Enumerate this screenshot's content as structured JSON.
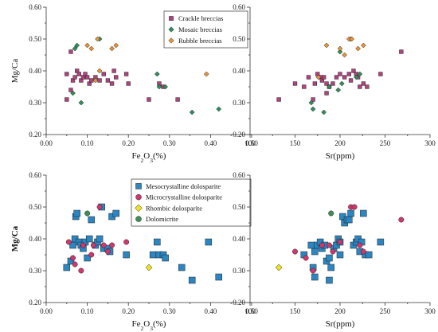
{
  "chart_data": [
    {
      "id": "top-left",
      "type": "scatter",
      "xlabel": "Fe2O3(%)",
      "ylabel": "Mg/Ca",
      "xlim": [
        0,
        0.5
      ],
      "ylim": [
        0.2,
        0.6
      ],
      "xticks": [
        "0.00",
        "0.10",
        "0.20",
        "0.30",
        "0.40",
        "0.50"
      ],
      "yticks": [
        "0.20",
        "0.30",
        "0.40",
        "0.50",
        "0.60"
      ],
      "legend": "top-right",
      "series": [
        {
          "name": "Crackle breccias",
          "marker": "square",
          "color": "#b0427e",
          "points": [
            [
              0.05,
              0.39
            ],
            [
              0.06,
              0.46
            ],
            [
              0.065,
              0.37
            ],
            [
              0.07,
              0.38
            ],
            [
              0.075,
              0.4
            ],
            [
              0.08,
              0.39
            ],
            [
              0.085,
              0.37
            ],
            [
              0.09,
              0.38
            ],
            [
              0.095,
              0.39
            ],
            [
              0.1,
              0.38
            ],
            [
              0.105,
              0.36
            ],
            [
              0.11,
              0.37
            ],
            [
              0.12,
              0.38
            ],
            [
              0.13,
              0.37
            ],
            [
              0.14,
              0.39
            ],
            [
              0.15,
              0.37
            ],
            [
              0.16,
              0.36
            ],
            [
              0.165,
              0.4
            ],
            [
              0.17,
              0.38
            ],
            [
              0.195,
              0.39
            ],
            [
              0.2,
              0.36
            ],
            [
              0.25,
              0.31
            ],
            [
              0.275,
              0.36
            ],
            [
              0.285,
              0.35
            ],
            [
              0.32,
              0.31
            ],
            [
              0.05,
              0.31
            ],
            [
              0.06,
              0.34
            ]
          ]
        },
        {
          "name": "Mosaic breccias",
          "marker": "diamond",
          "color": "#2f8f5a",
          "points": [
            [
              0.07,
              0.47
            ],
            [
              0.075,
              0.48
            ],
            [
              0.085,
              0.3
            ],
            [
              0.065,
              0.33
            ],
            [
              0.13,
              0.5
            ],
            [
              0.27,
              0.39
            ],
            [
              0.275,
              0.35
            ],
            [
              0.29,
              0.35
            ],
            [
              0.355,
              0.27
            ],
            [
              0.42,
              0.28
            ]
          ]
        },
        {
          "name": "Rubble breccias",
          "marker": "diamond",
          "color": "#e8953a",
          "points": [
            [
              0.1,
              0.48
            ],
            [
              0.11,
              0.47
            ],
            [
              0.125,
              0.5
            ],
            [
              0.13,
              0.4
            ],
            [
              0.16,
              0.47
            ],
            [
              0.17,
              0.48
            ],
            [
              0.12,
              0.37
            ],
            [
              0.39,
              0.39
            ]
          ]
        }
      ]
    },
    {
      "id": "top-right",
      "type": "scatter",
      "xlabel": "Sr(ppm)",
      "ylabel": "",
      "xlim": [
        100,
        300
      ],
      "ylim": [
        0.2,
        0.6
      ],
      "xticks": [
        "100",
        "150",
        "200",
        "250",
        "300"
      ],
      "yticks": [
        "0.20",
        "0.30",
        "0.40",
        "0.50",
        "0.60"
      ],
      "series": [
        {
          "name": "Crackle breccias",
          "marker": "square",
          "color": "#b0427e",
          "points": [
            [
              132,
              0.31
            ],
            [
              150,
              0.36
            ],
            [
              160,
              0.35
            ],
            [
              165,
              0.38
            ],
            [
              172,
              0.36
            ],
            [
              175,
              0.39
            ],
            [
              178,
              0.38
            ],
            [
              180,
              0.37
            ],
            [
              182,
              0.38
            ],
            [
              185,
              0.36
            ],
            [
              188,
              0.35
            ],
            [
              192,
              0.36
            ],
            [
              196,
              0.38
            ],
            [
              200,
              0.39
            ],
            [
              205,
              0.38
            ],
            [
              210,
              0.39
            ],
            [
              212,
              0.37
            ],
            [
              215,
              0.4
            ],
            [
              218,
              0.39
            ],
            [
              220,
              0.38
            ],
            [
              222,
              0.35
            ],
            [
              226,
              0.36
            ],
            [
              230,
              0.35
            ],
            [
              245,
              0.39
            ],
            [
              268,
              0.46
            ],
            [
              170,
              0.31
            ],
            [
              185,
              0.33
            ]
          ]
        },
        {
          "name": "Mosaic breccias",
          "marker": "diamond",
          "color": "#2f8f5a",
          "points": [
            [
              168,
              0.3
            ],
            [
              170,
              0.28
            ],
            [
              182,
              0.27
            ],
            [
              188,
              0.35
            ],
            [
              198,
              0.34
            ],
            [
              200,
              0.46
            ],
            [
              212,
              0.5
            ],
            [
              218,
              0.38
            ],
            [
              222,
              0.39
            ],
            [
              202,
              0.36
            ]
          ]
        },
        {
          "name": "Rubble breccias",
          "marker": "diamond",
          "color": "#e8953a",
          "points": [
            [
              185,
              0.48
            ],
            [
              200,
              0.47
            ],
            [
              205,
              0.45
            ],
            [
              210,
              0.5
            ],
            [
              213,
              0.5
            ],
            [
              220,
              0.47
            ],
            [
              226,
              0.48
            ],
            [
              176,
              0.38
            ]
          ]
        }
      ]
    },
    {
      "id": "bottom-left",
      "type": "scatter",
      "xlabel": "Fe2O3(%)",
      "ylabel": "Mg/Ca",
      "xlim": [
        0,
        0.5
      ],
      "ylim": [
        0.2,
        0.6
      ],
      "xticks": [
        "0.00",
        "0.10",
        "0.20",
        "0.30",
        "0.40",
        "0.50"
      ],
      "yticks": [
        "0.20",
        "0.30",
        "0.40",
        "0.50",
        "0.60"
      ],
      "legend": "top-right",
      "series": [
        {
          "name": "Mesocrystalline dolosparite",
          "marker": "square",
          "color": "#2b86c2",
          "points": [
            [
              0.05,
              0.31
            ],
            [
              0.06,
              0.33
            ],
            [
              0.065,
              0.38
            ],
            [
              0.07,
              0.4
            ],
            [
              0.072,
              0.47
            ],
            [
              0.075,
              0.48
            ],
            [
              0.08,
              0.39
            ],
            [
              0.085,
              0.38
            ],
            [
              0.09,
              0.37
            ],
            [
              0.095,
              0.39
            ],
            [
              0.1,
              0.34
            ],
            [
              0.105,
              0.4
            ],
            [
              0.11,
              0.46
            ],
            [
              0.12,
              0.38
            ],
            [
              0.125,
              0.39
            ],
            [
              0.13,
              0.4
            ],
            [
              0.135,
              0.5
            ],
            [
              0.14,
              0.37
            ],
            [
              0.15,
              0.37
            ],
            [
              0.155,
              0.36
            ],
            [
              0.16,
              0.47
            ],
            [
              0.17,
              0.48
            ],
            [
              0.195,
              0.35
            ],
            [
              0.26,
              0.35
            ],
            [
              0.27,
              0.39
            ],
            [
              0.275,
              0.35
            ],
            [
              0.285,
              0.35
            ],
            [
              0.29,
              0.34
            ],
            [
              0.33,
              0.31
            ],
            [
              0.355,
              0.27
            ],
            [
              0.395,
              0.39
            ],
            [
              0.42,
              0.28
            ]
          ]
        },
        {
          "name": "Microcrystalline dolosparite",
          "marker": "circle",
          "color": "#d1366e",
          "points": [
            [
              0.055,
              0.39
            ],
            [
              0.065,
              0.34
            ],
            [
              0.07,
              0.32
            ],
            [
              0.085,
              0.3
            ],
            [
              0.09,
              0.38
            ],
            [
              0.11,
              0.35
            ],
            [
              0.115,
              0.38
            ],
            [
              0.13,
              0.5
            ],
            [
              0.14,
              0.38
            ],
            [
              0.15,
              0.36
            ],
            [
              0.16,
              0.38
            ],
            [
              0.195,
              0.39
            ]
          ]
        },
        {
          "name": "Rhombic dolosparite",
          "marker": "diamond",
          "color": "#f2e21b",
          "points": [
            [
              0.25,
              0.31
            ]
          ]
        },
        {
          "name": "Dolomicrite",
          "marker": "circle",
          "color": "#3f8f55",
          "points": [
            [
              0.1,
              0.48
            ]
          ]
        }
      ]
    },
    {
      "id": "bottom-right",
      "type": "scatter",
      "xlabel": "Sr(ppm)",
      "ylabel": "",
      "xlim": [
        100,
        300
      ],
      "ylim": [
        0.2,
        0.6
      ],
      "xticks": [
        "100",
        "150",
        "200",
        "250",
        "300"
      ],
      "yticks": [
        "0.20",
        "0.30",
        "0.40",
        "0.50",
        "0.60"
      ],
      "series": [
        {
          "name": "Mesocrystalline dolosparite",
          "marker": "square",
          "color": "#2b86c2",
          "points": [
            [
              160,
              0.35
            ],
            [
              168,
              0.38
            ],
            [
              170,
              0.31
            ],
            [
              172,
              0.28
            ],
            [
              175,
              0.38
            ],
            [
              178,
              0.39
            ],
            [
              180,
              0.37
            ],
            [
              183,
              0.38
            ],
            [
              185,
              0.33
            ],
            [
              188,
              0.34
            ],
            [
              190,
              0.31
            ],
            [
              193,
              0.37
            ],
            [
              196,
              0.38
            ],
            [
              198,
              0.4
            ],
            [
              200,
              0.39
            ],
            [
              203,
              0.47
            ],
            [
              205,
              0.45
            ],
            [
              208,
              0.46
            ],
            [
              210,
              0.46
            ],
            [
              212,
              0.48
            ],
            [
              215,
              0.38
            ],
            [
              218,
              0.39
            ],
            [
              220,
              0.4
            ],
            [
              222,
              0.36
            ],
            [
              224,
              0.39
            ],
            [
              226,
              0.48
            ],
            [
              228,
              0.35
            ],
            [
              232,
              0.35
            ],
            [
              245,
              0.39
            ],
            [
              188,
              0.27
            ],
            [
              200,
              0.35
            ],
            [
              172,
              0.36
            ]
          ]
        },
        {
          "name": "Microcrystalline dolosparite",
          "marker": "circle",
          "color": "#d1366e",
          "points": [
            [
              150,
              0.36
            ],
            [
              162,
              0.34
            ],
            [
              170,
              0.3
            ],
            [
              180,
              0.38
            ],
            [
              188,
              0.38
            ],
            [
              192,
              0.36
            ],
            [
              200,
              0.39
            ],
            [
              212,
              0.5
            ],
            [
              216,
              0.5
            ],
            [
              222,
              0.38
            ],
            [
              226,
              0.36
            ],
            [
              268,
              0.46
            ]
          ]
        },
        {
          "name": "Rhombic dolosparite",
          "marker": "diamond",
          "color": "#f2e21b",
          "points": [
            [
              132,
              0.31
            ]
          ]
        },
        {
          "name": "Dolomicrite",
          "marker": "circle",
          "color": "#3f8f55",
          "points": [
            [
              190,
              0.48
            ]
          ]
        }
      ]
    }
  ]
}
